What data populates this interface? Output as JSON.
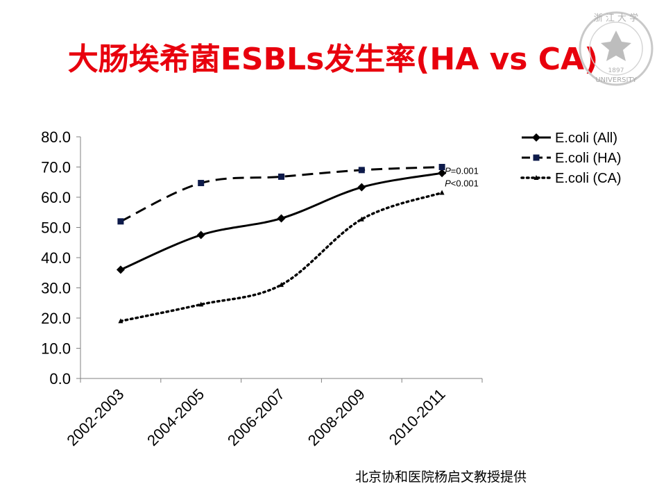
{
  "slide": {
    "title": "大肠埃希菌ESBLs发生率(HA vs CA)",
    "credit": "北京协和医院杨启文教授提供",
    "logo": {
      "icon": "university-seal-icon",
      "text_top": "浙 江 大 学",
      "text_bottom": "UNIVERSITY",
      "year": "1897"
    }
  },
  "chart_data": {
    "type": "line",
    "title": "",
    "xlabel": "",
    "ylabel": "",
    "categories": [
      "2002-2003",
      "2004-2005",
      "2006-2007",
      "2008-2009",
      "2010-2011"
    ],
    "ylim": [
      0,
      80
    ],
    "yticks": [
      "0.0",
      "10.0",
      "20.0",
      "30.0",
      "40.0",
      "50.0",
      "60.0",
      "70.0",
      "80.0"
    ],
    "grid": false,
    "legend_position": "top-right",
    "series": [
      {
        "name": "E.coli (All)",
        "values": [
          36.0,
          47.5,
          53.0,
          63.3,
          68.0
        ],
        "line": "solid",
        "marker": "diamond",
        "color": "#000000"
      },
      {
        "name": "E.coli (HA)",
        "values": [
          52.0,
          64.7,
          66.8,
          69.0,
          70.0
        ],
        "line": "dashed",
        "marker": "square",
        "color": "#000000"
      },
      {
        "name": "E.coli (CA)",
        "values": [
          19.0,
          24.5,
          31.0,
          52.7,
          61.5
        ],
        "line": "dotted",
        "marker": "triangle",
        "color": "#000000"
      }
    ],
    "annotations": [
      {
        "text": "P=0.001",
        "italic_prefix": "P",
        "rest": "=0.001"
      },
      {
        "text": "P<0.001",
        "italic_prefix": "P",
        "rest": "<0.001"
      }
    ]
  }
}
